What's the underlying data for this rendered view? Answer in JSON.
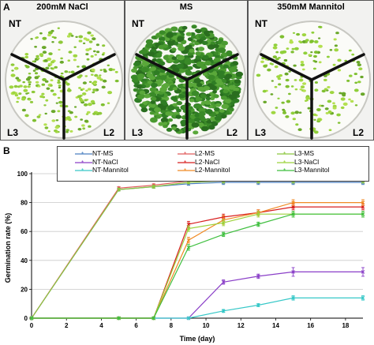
{
  "panel_a": {
    "letter": "A",
    "plates": [
      {
        "title": "200mM NaCl",
        "nt": "NT",
        "l3": "L3",
        "l2": "L2",
        "density": "medium",
        "leaf_color": "#8fc93a"
      },
      {
        "title": "MS",
        "nt": "NT",
        "l3": "L3",
        "l2": "L2",
        "density": "high",
        "leaf_color": "#3f8f2a"
      },
      {
        "title": "350mM Mannitol",
        "nt": "NT",
        "l3": "L3",
        "l2": "L2",
        "density": "low",
        "leaf_color": "#8fcf3a"
      }
    ]
  },
  "panel_b": {
    "letter": "B"
  },
  "chart_data": {
    "type": "line",
    "title": "",
    "xlabel": "Time (day)",
    "ylabel": "Germination rate (%)",
    "xlim": [
      0,
      19
    ],
    "ylim": [
      0,
      100
    ],
    "xticks": [
      0,
      2,
      4,
      6,
      8,
      10,
      12,
      14,
      16,
      18
    ],
    "yticks": [
      0,
      20,
      40,
      60,
      80,
      100
    ],
    "grid": "horizontal",
    "legend_position": "top",
    "series": [
      {
        "name": "NT-MS",
        "color": "#4a7fc1",
        "x": [
          0,
          5,
          7,
          9,
          11,
          13,
          15,
          19
        ],
        "y": [
          0,
          89,
          91,
          93,
          94,
          94,
          94,
          94
        ],
        "err": [
          0,
          1,
          1,
          1,
          1.5,
          1.5,
          1.5,
          1.5
        ]
      },
      {
        "name": "NT-NaCl",
        "color": "#8a3fc8",
        "x": [
          0,
          5,
          7,
          9,
          11,
          13,
          15,
          19
        ],
        "y": [
          0,
          0,
          0,
          0,
          25,
          29,
          32,
          32
        ],
        "err": [
          0,
          0,
          0,
          0,
          1.5,
          1.5,
          3,
          3
        ]
      },
      {
        "name": "NT-Mannitol",
        "color": "#37c8c8",
        "x": [
          0,
          5,
          7,
          9,
          11,
          13,
          15,
          19
        ],
        "y": [
          0,
          0,
          0,
          0,
          5,
          9,
          14,
          14
        ],
        "err": [
          0,
          0,
          0,
          0,
          1,
          1,
          1.5,
          1.5
        ]
      },
      {
        "name": "L2-MS",
        "color": "#e05a5a",
        "x": [
          0,
          5,
          7,
          9,
          11,
          13,
          15,
          19
        ],
        "y": [
          0,
          90,
          92,
          95,
          96,
          96,
          96,
          96
        ],
        "err": [
          0,
          1,
          1,
          1,
          1.5,
          1.5,
          1.5,
          1.5
        ]
      },
      {
        "name": "L2-NaCl",
        "color": "#d81f1f",
        "x": [
          0,
          5,
          7,
          9,
          11,
          13,
          15,
          19
        ],
        "y": [
          0,
          0,
          0,
          65,
          70,
          73,
          77,
          77
        ],
        "err": [
          0,
          0,
          0,
          2,
          2,
          2,
          2,
          2
        ]
      },
      {
        "name": "L2-Mannitol",
        "color": "#f08a24",
        "x": [
          0,
          5,
          7,
          9,
          11,
          13,
          15,
          19
        ],
        "y": [
          0,
          0,
          0,
          54,
          68,
          73,
          80,
          80
        ],
        "err": [
          0,
          0,
          0,
          2,
          3,
          2,
          2,
          2
        ]
      },
      {
        "name": "L3-MS",
        "color": "#8cc63f",
        "x": [
          0,
          5,
          7,
          9,
          11,
          13,
          15,
          19
        ],
        "y": [
          0,
          89,
          91,
          94,
          95,
          95,
          95,
          95
        ],
        "err": [
          0,
          1,
          1,
          1,
          1.5,
          1.5,
          1.5,
          1.5
        ]
      },
      {
        "name": "L3-NaCl",
        "color": "#9bd23a",
        "x": [
          0,
          5,
          7,
          9,
          11,
          13,
          15,
          19
        ],
        "y": [
          0,
          0,
          0,
          62,
          66,
          72,
          72,
          72
        ],
        "err": [
          0,
          0,
          0,
          2,
          2,
          2,
          2,
          2
        ]
      },
      {
        "name": "L3-Mannitol",
        "color": "#3fbf3f",
        "x": [
          0,
          5,
          7,
          9,
          11,
          13,
          15,
          19
        ],
        "y": [
          0,
          0,
          0,
          49,
          58,
          65,
          72,
          72
        ],
        "err": [
          0,
          0,
          0,
          2,
          1.5,
          1.5,
          2,
          2
        ]
      }
    ]
  }
}
